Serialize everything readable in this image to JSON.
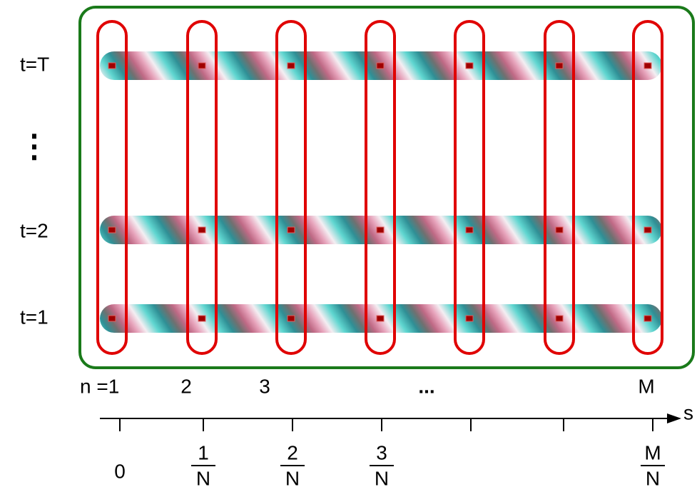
{
  "row_labels": [
    "t=T",
    "⋮",
    "t=2",
    "t=1"
  ],
  "column_labels": [
    "n =1",
    "2",
    "3",
    "...",
    "M"
  ],
  "axis": {
    "label": "s",
    "origin_label": "0",
    "fractions": [
      {
        "numerator": "1",
        "denominator": "N"
      },
      {
        "numerator": "2",
        "denominator": "N"
      },
      {
        "numerator": "3",
        "denominator": "N"
      },
      {
        "numerator": "M",
        "denominator": "N"
      }
    ]
  }
}
